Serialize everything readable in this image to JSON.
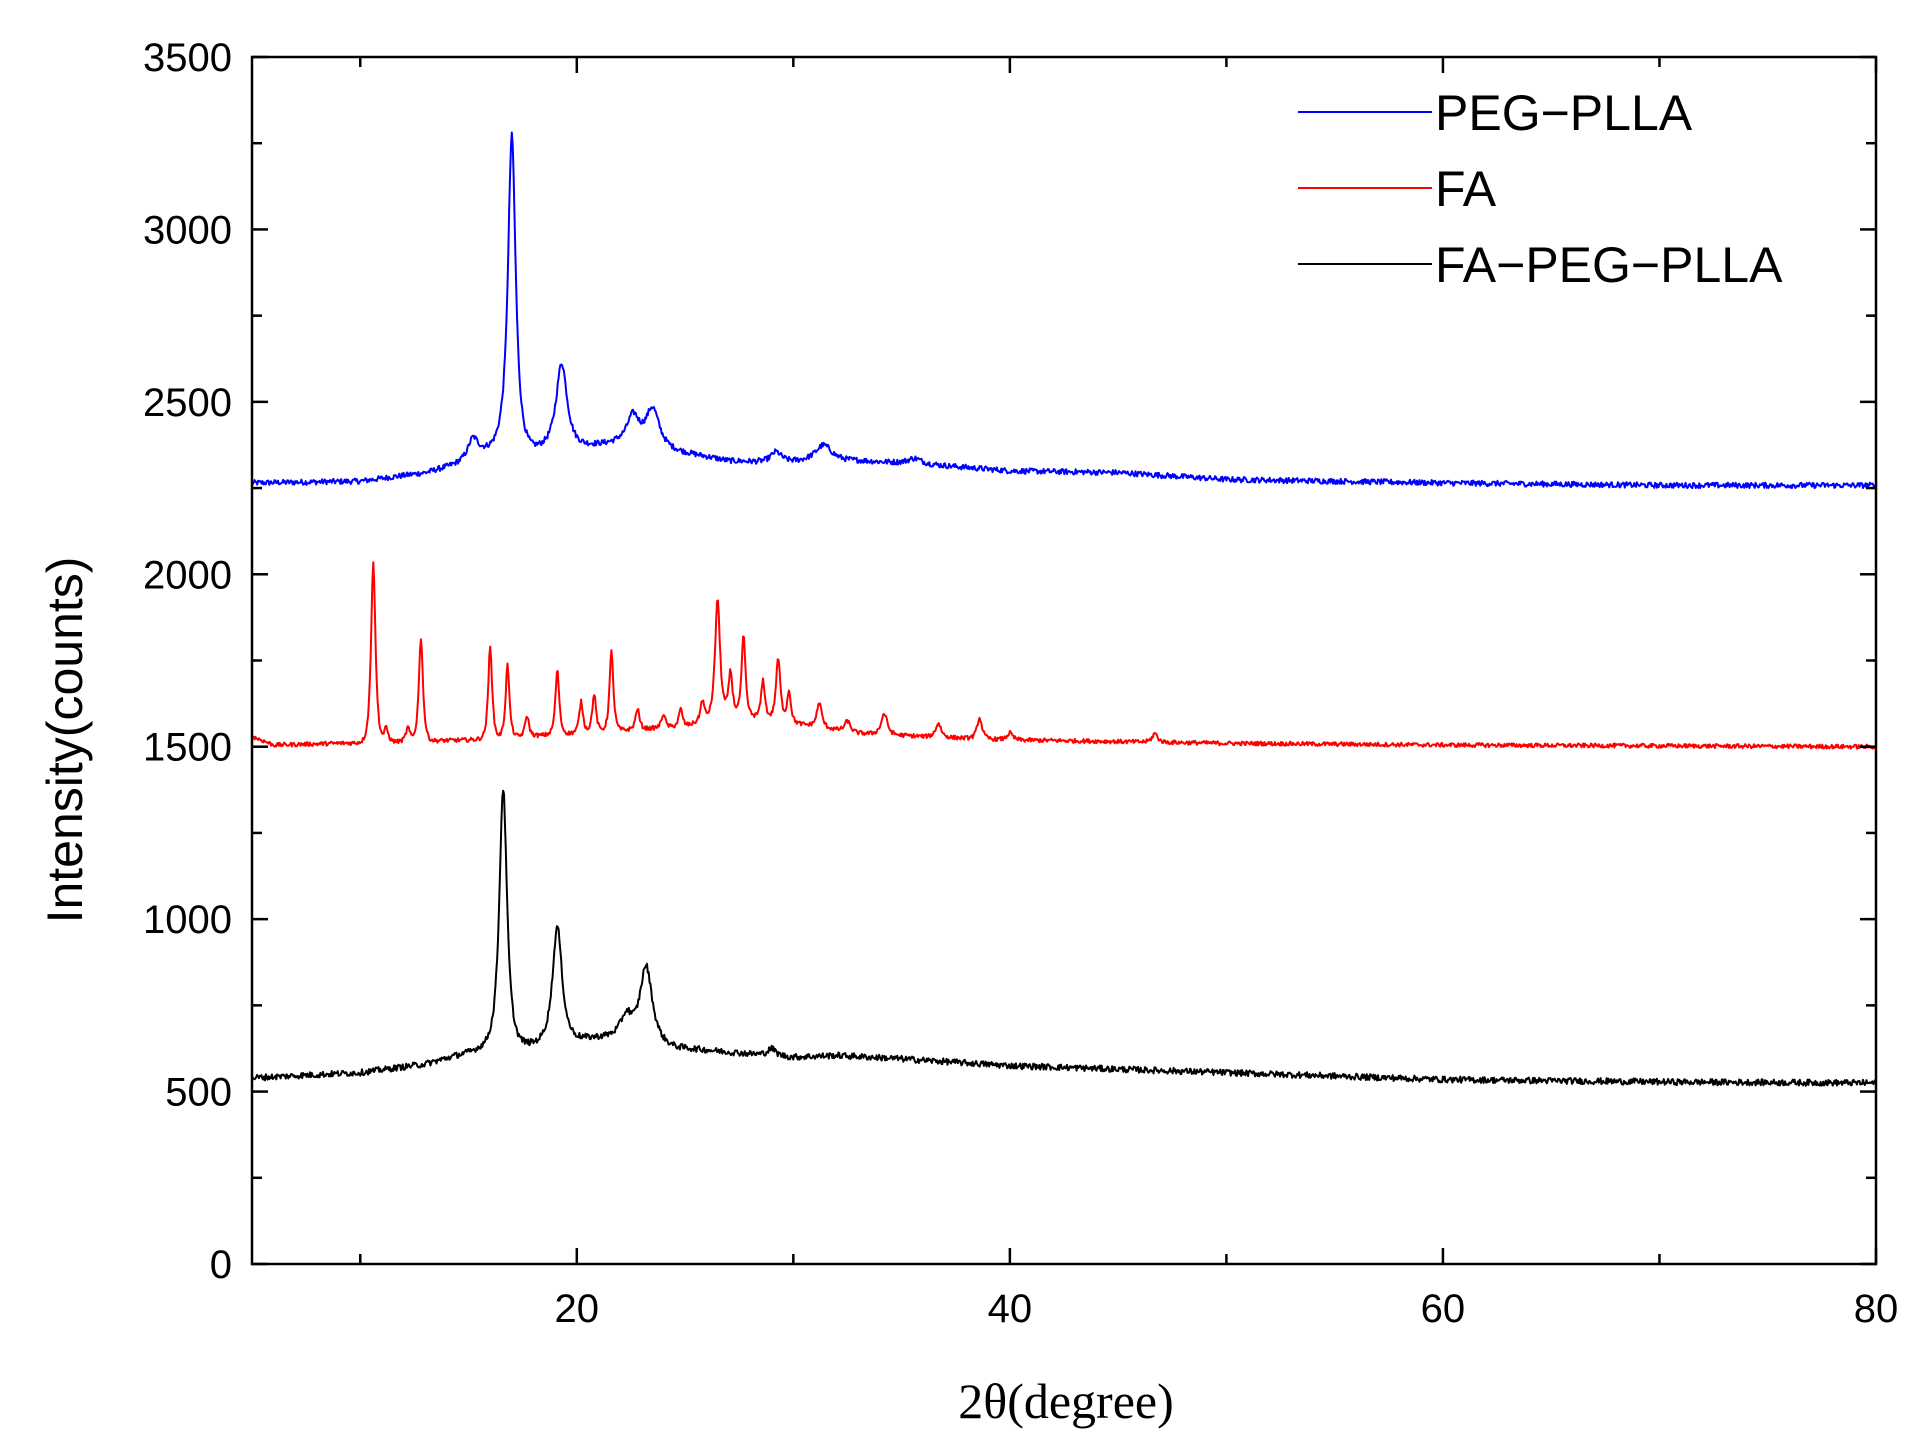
{
  "chart_data": {
    "type": "line",
    "xlabel": "2θ(degree)",
    "ylabel": "Intensity(counts)",
    "xlim": [
      5,
      80
    ],
    "ylim": [
      0,
      3500
    ],
    "xticks": [
      20,
      40,
      60,
      80
    ],
    "yticks": [
      0,
      500,
      1000,
      1500,
      2000,
      2500,
      3000,
      3500
    ],
    "grid": false,
    "legend_position": "top-right",
    "series": [
      {
        "name": "PEG−PLLA",
        "color": "#0000ff",
        "baseline": [
          [
            5,
            2265
          ],
          [
            10,
            2270
          ],
          [
            13,
            2295
          ],
          [
            15,
            2330
          ],
          [
            16.5,
            2390
          ],
          [
            18,
            2370
          ],
          [
            20,
            2375
          ],
          [
            22,
            2385
          ],
          [
            24.5,
            2360
          ],
          [
            27,
            2330
          ],
          [
            29,
            2325
          ],
          [
            31,
            2330
          ],
          [
            33,
            2330
          ],
          [
            36,
            2320
          ],
          [
            40,
            2300
          ],
          [
            45,
            2295
          ],
          [
            50,
            2275
          ],
          [
            60,
            2265
          ],
          [
            70,
            2258
          ],
          [
            80,
            2258
          ]
        ],
        "peaks": [
          [
            15.2,
            60,
            0.4
          ],
          [
            17.0,
            890,
            0.28
          ],
          [
            19.3,
            240,
            0.4
          ],
          [
            22.6,
            80,
            0.45
          ],
          [
            23.5,
            110,
            0.5
          ],
          [
            29.2,
            30,
            0.4
          ],
          [
            31.4,
            45,
            0.6
          ],
          [
            35.6,
            15,
            0.5
          ]
        ],
        "noise": 8
      },
      {
        "name": "FA",
        "color": "#ff0000",
        "baseline": [
          [
            5,
            1530
          ],
          [
            6,
            1505
          ],
          [
            15,
            1520
          ],
          [
            20,
            1540
          ],
          [
            25,
            1560
          ],
          [
            27,
            1600
          ],
          [
            30,
            1570
          ],
          [
            33,
            1540
          ],
          [
            36,
            1530
          ],
          [
            40,
            1520
          ],
          [
            45,
            1515
          ],
          [
            50,
            1510
          ],
          [
            60,
            1505
          ],
          [
            80,
            1500
          ]
        ],
        "peaks": [
          [
            10.6,
            525,
            0.16
          ],
          [
            11.2,
            40,
            0.15
          ],
          [
            12.2,
            40,
            0.15
          ],
          [
            12.8,
            300,
            0.15
          ],
          [
            16.0,
            270,
            0.14
          ],
          [
            16.8,
            210,
            0.14
          ],
          [
            17.7,
            60,
            0.14
          ],
          [
            19.1,
            185,
            0.14
          ],
          [
            20.2,
            90,
            0.14
          ],
          [
            20.8,
            110,
            0.14
          ],
          [
            21.6,
            230,
            0.14
          ],
          [
            22.8,
            60,
            0.14
          ],
          [
            24.0,
            40,
            0.14
          ],
          [
            24.8,
            50,
            0.14
          ],
          [
            25.8,
            60,
            0.14
          ],
          [
            26.5,
            340,
            0.18
          ],
          [
            27.1,
            120,
            0.14
          ],
          [
            27.7,
            230,
            0.14
          ],
          [
            28.6,
            110,
            0.14
          ],
          [
            29.3,
            180,
            0.16
          ],
          [
            29.8,
            90,
            0.14
          ],
          [
            31.2,
            70,
            0.18
          ],
          [
            32.5,
            30,
            0.2
          ],
          [
            34.2,
            60,
            0.22
          ],
          [
            36.7,
            40,
            0.2
          ],
          [
            38.6,
            60,
            0.18
          ],
          [
            40.0,
            20,
            0.2
          ],
          [
            46.7,
            25,
            0.2
          ]
        ],
        "noise": 6
      },
      {
        "name": "FA−PEG−PLLA",
        "color": "#000000",
        "baseline": [
          [
            5,
            540
          ],
          [
            10,
            555
          ],
          [
            13,
            580
          ],
          [
            15,
            615
          ],
          [
            16,
            640
          ],
          [
            18,
            640
          ],
          [
            20,
            655
          ],
          [
            22,
            665
          ],
          [
            24.5,
            630
          ],
          [
            27,
            615
          ],
          [
            30,
            600
          ],
          [
            32,
            605
          ],
          [
            35,
            595
          ],
          [
            40,
            575
          ],
          [
            45,
            565
          ],
          [
            50,
            555
          ],
          [
            55,
            545
          ],
          [
            60,
            535
          ],
          [
            70,
            528
          ],
          [
            80,
            525
          ]
        ],
        "peaks": [
          [
            16.6,
            740,
            0.28
          ],
          [
            19.1,
            330,
            0.35
          ],
          [
            22.3,
            60,
            0.4
          ],
          [
            23.2,
            215,
            0.45
          ],
          [
            29.0,
            20,
            0.3
          ]
        ],
        "noise": 9
      }
    ]
  }
}
